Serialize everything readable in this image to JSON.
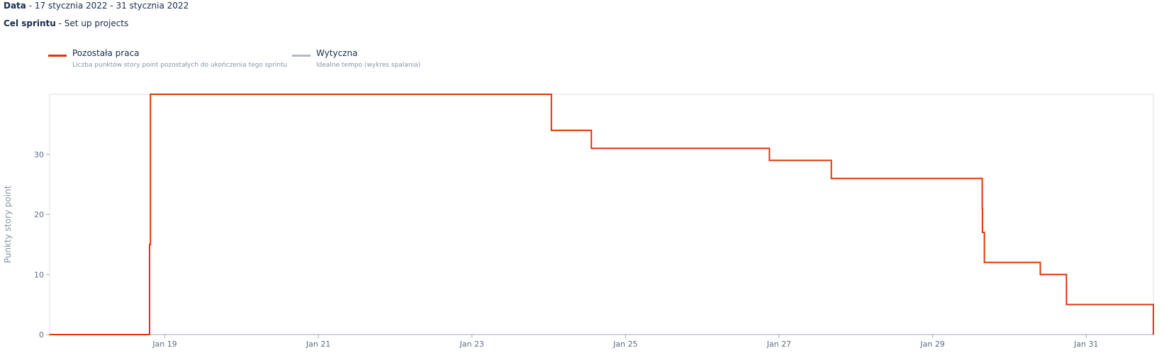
{
  "header": {
    "date_label": "Data",
    "date_value": "17 stycznia 2022 - 31 stycznia 2022",
    "goal_label": "Cel sprintu",
    "goal_value": "Set up projects",
    "separator": " - "
  },
  "legend": [
    {
      "name": "Pozostała praca",
      "description": "Liczba punktów story point pozostałych do ukończenia tego sprintu",
      "color": "#de350b"
    },
    {
      "name": "Wytyczna",
      "description": "Idealne tempo (wykres spalania)",
      "color": "#b3bac5"
    }
  ],
  "chart_data": {
    "type": "line",
    "step": true,
    "ylabel": "Punkty story point",
    "ylim": [
      0,
      40
    ],
    "yticks": [
      0,
      10,
      20,
      30
    ],
    "xlim": [
      "2022-01-17 12:00",
      "2022-01-31 21:00"
    ],
    "xticks": [
      {
        "x": "2022-01-19 00:00",
        "label": "Jan 19"
      },
      {
        "x": "2022-01-21 00:00",
        "label": "Jan 21"
      },
      {
        "x": "2022-01-23 00:00",
        "label": "Jan 23"
      },
      {
        "x": "2022-01-25 00:00",
        "label": "Jan 25"
      },
      {
        "x": "2022-01-27 00:00",
        "label": "Jan 27"
      },
      {
        "x": "2022-01-29 00:00",
        "label": "Jan 29"
      },
      {
        "x": "2022-01-31 00:00",
        "label": "Jan 31"
      }
    ],
    "grid": false,
    "series": [
      {
        "name": "Pozostała praca",
        "color": "#de350b",
        "points": [
          {
            "x": "2022-01-17 12:00",
            "y": 0
          },
          {
            "x": "2022-01-18 19:00",
            "y": 0
          },
          {
            "x": "2022-01-18 19:15",
            "y": 15
          },
          {
            "x": "2022-01-18 19:30",
            "y": 40
          },
          {
            "x": "2022-01-24 00:50",
            "y": 34
          },
          {
            "x": "2022-01-24 13:20",
            "y": 31
          },
          {
            "x": "2022-01-26 21:00",
            "y": 29
          },
          {
            "x": "2022-01-27 16:20",
            "y": 26
          },
          {
            "x": "2022-01-29 15:30",
            "y": 21
          },
          {
            "x": "2022-01-29 15:35",
            "y": 17
          },
          {
            "x": "2022-01-29 16:10",
            "y": 12
          },
          {
            "x": "2022-01-30 09:40",
            "y": 10
          },
          {
            "x": "2022-01-30 17:50",
            "y": 5
          },
          {
            "x": "2022-01-31 21:00",
            "y": 0
          }
        ]
      }
    ]
  }
}
